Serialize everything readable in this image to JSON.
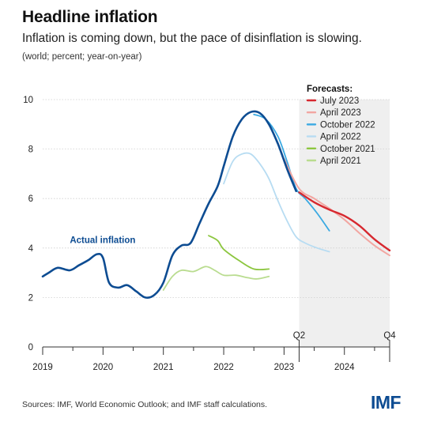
{
  "title": "Headline inflation",
  "subtitle": "Inflation is coming down, but the pace of disinflation is slowing.",
  "note": "(world; percent; year-on-year)",
  "source": "Sources: IMF, World Economic Outlook; and IMF staff calculations.",
  "logo": "IMF",
  "chart_data": {
    "type": "line",
    "ylim": [
      0,
      10
    ],
    "yticks": [
      0,
      2,
      4,
      6,
      8,
      10
    ],
    "xlim": [
      2019.0,
      2024.75
    ],
    "xticks": [
      {
        "x": 2019.0,
        "label": "2019"
      },
      {
        "x": 2020.0,
        "label": "2020"
      },
      {
        "x": 2021.0,
        "label": "2021"
      },
      {
        "x": 2022.0,
        "label": "2022"
      },
      {
        "x": 2023.0,
        "label": "2023"
      },
      {
        "x": 2024.0,
        "label": "2024"
      }
    ],
    "forecast_region": {
      "start": 2023.25,
      "end": 2024.75
    },
    "period_markers": [
      {
        "x": 2023.25,
        "label": "Q2"
      },
      {
        "x": 2024.75,
        "label": "Q4"
      }
    ],
    "legend_title": "Forecasts:",
    "legend_position": "top-right",
    "grid": true,
    "annotation": {
      "text": "Actual inflation",
      "x": 2019.45,
      "y": 4.2,
      "color": "#0d4c92"
    },
    "series": [
      {
        "name": "April 2021",
        "color": "#b9dc8f",
        "width": 1.8,
        "x": [
          2021.0,
          2021.15,
          2021.3,
          2021.5,
          2021.7,
          2021.85,
          2022.0,
          2022.2,
          2022.4,
          2022.55,
          2022.75
        ],
        "y": [
          2.3,
          2.85,
          3.1,
          3.05,
          3.25,
          3.1,
          2.9,
          2.9,
          2.8,
          2.75,
          2.85
        ]
      },
      {
        "name": "October 2021",
        "color": "#8cc63f",
        "width": 1.8,
        "x": [
          2021.75,
          2021.9,
          2022.0,
          2022.25,
          2022.5,
          2022.75
        ],
        "y": [
          4.5,
          4.3,
          3.95,
          3.5,
          3.15,
          3.15
        ]
      },
      {
        "name": "April 2022",
        "color": "#b7dcf2",
        "width": 1.8,
        "x": [
          2022.0,
          2022.15,
          2022.3,
          2022.45,
          2022.6,
          2022.75,
          2022.9,
          2023.05,
          2023.2,
          2023.35,
          2023.55,
          2023.75
        ],
        "y": [
          6.6,
          7.5,
          7.8,
          7.8,
          7.4,
          6.8,
          5.9,
          5.1,
          4.45,
          4.2,
          4.0,
          3.85
        ]
      },
      {
        "name": "October 2022",
        "color": "#3aa9e2",
        "width": 1.8,
        "x": [
          2022.5,
          2022.7,
          2022.9,
          2023.05,
          2023.2,
          2023.35,
          2023.55,
          2023.75
        ],
        "y": [
          9.4,
          9.2,
          8.5,
          7.5,
          6.4,
          6.0,
          5.4,
          4.7
        ]
      },
      {
        "name": "April 2023",
        "color": "#f2a6a1",
        "width": 2,
        "x": [
          2023.0,
          2023.25,
          2023.5,
          2023.75,
          2024.0,
          2024.25,
          2024.5,
          2024.75
        ],
        "y": [
          7.6,
          6.4,
          6.0,
          5.6,
          5.15,
          4.6,
          4.1,
          3.7
        ]
      },
      {
        "name": "July 2023",
        "color": "#d7282f",
        "width": 2.4,
        "x": [
          2023.25,
          2023.5,
          2023.75,
          2024.0,
          2024.25,
          2024.5,
          2024.75
        ],
        "y": [
          6.25,
          5.85,
          5.55,
          5.3,
          4.9,
          4.35,
          3.9
        ]
      },
      {
        "name": "Actual",
        "color": "#0d4c92",
        "width": 2.6,
        "x": [
          2019.0,
          2019.1,
          2019.25,
          2019.45,
          2019.6,
          2019.75,
          2019.9,
          2020.0,
          2020.1,
          2020.25,
          2020.4,
          2020.55,
          2020.7,
          2020.85,
          2021.0,
          2021.15,
          2021.3,
          2021.45,
          2021.6,
          2021.75,
          2021.9,
          2022.0,
          2022.15,
          2022.3,
          2022.45,
          2022.6,
          2022.75,
          2022.9,
          2023.05,
          2023.2
        ],
        "y": [
          2.85,
          3.0,
          3.2,
          3.1,
          3.3,
          3.5,
          3.75,
          3.6,
          2.6,
          2.4,
          2.5,
          2.25,
          2.0,
          2.1,
          2.6,
          3.7,
          4.1,
          4.2,
          5.0,
          5.8,
          6.5,
          7.3,
          8.5,
          9.2,
          9.5,
          9.45,
          9.0,
          8.2,
          7.2,
          6.3
        ]
      }
    ],
    "legend_order": [
      "July 2023",
      "April 2023",
      "October 2022",
      "April 2022",
      "October 2021",
      "April 2021"
    ]
  }
}
